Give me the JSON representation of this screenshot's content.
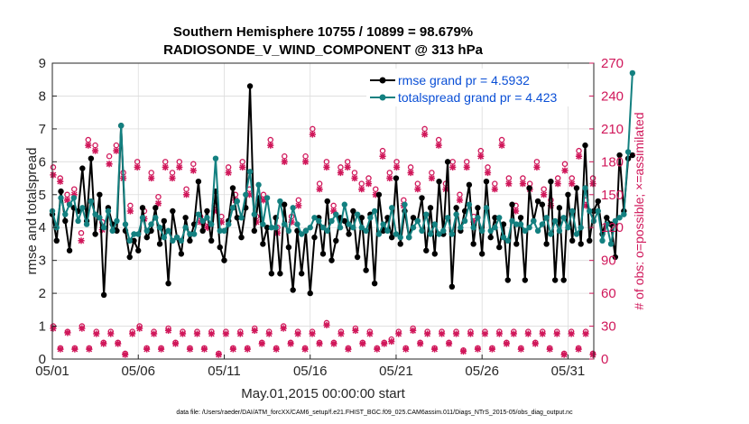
{
  "chart_data": {
    "type": "line",
    "title_line1": "Southern Hemisphere 10755 / 10899 = 98.679%",
    "title_line2": "RADIOSONDE_V_WIND_COMPONENT @ 313 hPa",
    "xlabel": "May.01,2015 00:00:00 start",
    "ylabel_left": "rmse and totalspread",
    "ylabel_right": "# of obs: o=possible; ×=assimilated",
    "footer": "data file: /Users/raeder/DAI/ATM_forcXX/CAM6_setup/f.e21.FHIST_BGC.f09_025.CAM6assim.011/Diags_NTrS_2015-05/obs_diag_output.nc",
    "xlim": [
      1,
      32.5
    ],
    "ylim_left": [
      0,
      9
    ],
    "ylim_right": [
      0,
      270
    ],
    "x_ticks": [
      1,
      6,
      11,
      16,
      21,
      26,
      31
    ],
    "x_tick_labels": [
      "05/01",
      "05/06",
      "05/11",
      "05/16",
      "05/21",
      "05/26",
      "05/31"
    ],
    "y_left_ticks": [
      "0",
      "1",
      "2",
      "3",
      "4",
      "5",
      "6",
      "7",
      "8",
      "9"
    ],
    "y_right_ticks": [
      "0",
      "30",
      "60",
      "90",
      "120",
      "150",
      "180",
      "210",
      "240",
      "270"
    ],
    "legend": [
      {
        "label": "rmse grand pr = 4.5932",
        "color": "#000000"
      },
      {
        "label": "totalspread grand pr = 4.423",
        "color": "#138080"
      }
    ],
    "colors": {
      "rmse": "#000000",
      "spread": "#138080",
      "obs": "#d0175a",
      "legend_text": "#0a4fd6"
    },
    "x_start": 1,
    "x_step": 0.25,
    "series": [
      {
        "name": "rmse",
        "values": [
          4.4,
          3.6,
          5.1,
          4.2,
          3.3,
          4.6,
          4.5,
          5.8,
          4.2,
          6.1,
          3.8,
          5.0,
          1.95,
          4.6,
          4.1,
          3.9,
          7.1,
          3.9,
          3.1,
          3.6,
          3.3,
          4.6,
          3.7,
          3.9,
          4.6,
          3.5,
          4.2,
          2.3,
          4.5,
          3.7,
          3.2,
          4.3,
          3.6,
          4.1,
          5.4,
          3.9,
          4.5,
          3.6,
          5.1,
          3.4,
          3.0,
          4.2,
          5.2,
          4.3,
          3.7,
          4.6,
          8.3,
          3.9,
          4.9,
          3.5,
          4.0,
          2.6,
          4.3,
          2.6,
          4.7,
          3.4,
          2.1,
          3.9,
          2.6,
          3.9,
          2.0,
          3.7,
          4.3,
          3.2,
          4.8,
          3.0,
          3.6,
          4.3,
          4.2,
          3.8,
          4.5,
          3.1,
          4.3,
          2.7,
          4.4,
          2.3,
          5.0,
          3.9,
          4.3,
          3.7,
          5.5,
          3.5,
          4.5,
          3.7,
          4.3,
          4.2,
          4.9,
          3.3,
          4.6,
          3.2,
          5.4,
          3.8,
          6.0,
          2.2,
          4.6,
          3.9,
          4.5,
          5.3,
          3.5,
          4.6,
          3.2,
          5.4,
          3.7,
          4.3,
          3.4,
          4.1,
          2.4,
          4.7,
          3.5,
          4.3,
          2.4,
          5.2,
          4.2,
          4.8,
          4.7,
          3.5,
          5.4,
          2.4,
          4.6,
          2.4,
          5.0,
          3.6,
          5.2,
          3.5,
          6.5,
          3.6,
          4.5,
          4.8,
          3.8,
          4.3,
          4.1,
          3.1,
          6.2,
          4.5,
          6.1,
          6.2
        ]
      },
      {
        "name": "totalspread",
        "values": [
          4.5,
          4.0,
          4.9,
          4.4,
          4.7,
          4.9,
          4.2,
          4.6,
          4.1,
          4.8,
          4.4,
          4.3,
          4.0,
          4.5,
          3.9,
          4.2,
          7.1,
          4.1,
          3.6,
          3.8,
          3.8,
          4.3,
          3.9,
          4.1,
          4.3,
          4.0,
          3.7,
          3.9,
          3.6,
          3.7,
          3.6,
          4.0,
          3.8,
          3.8,
          4.4,
          4.2,
          4.3,
          4.1,
          6.1,
          3.9,
          3.9,
          4.1,
          4.6,
          4.8,
          4.3,
          5.0,
          5.7,
          4.4,
          5.3,
          4.1,
          4.9,
          4.0,
          4.0,
          4.8,
          4.1,
          3.9,
          4.6,
          4.1,
          3.8,
          3.9,
          4.0,
          4.3,
          4.2,
          4.0,
          3.9,
          4.2,
          4.4,
          4.0,
          4.7,
          4.1,
          4.0,
          4.4,
          4.0,
          3.9,
          4.3,
          4.5,
          3.8,
          4.1,
          3.9,
          4.6,
          3.8,
          3.7,
          4.7,
          3.7,
          4.0,
          4.2,
          3.9,
          4.4,
          3.8,
          4.1,
          3.8,
          3.9,
          4.3,
          3.8,
          4.4,
          4.0,
          4.2,
          4.7,
          4.0,
          4.3,
          3.9,
          4.6,
          3.9,
          4.0,
          4.3,
          3.7,
          3.6,
          4.2,
          4.1,
          4.1,
          3.9,
          4.0,
          4.2,
          3.9,
          4.1,
          4.3,
          3.8,
          4.2,
          3.9,
          4.3,
          4.0,
          4.5,
          3.8,
          4.0,
          5.2,
          4.5,
          4.2,
          4.5,
          3.6,
          4.1,
          3.5,
          4.2,
          4.3,
          4.4,
          6.3,
          8.7
        ]
      }
    ],
    "obs_possible_high": [
      175,
      165,
      150,
      155,
      115,
      200,
      195,
      125,
      185,
      195,
      170,
      140,
      180,
      135,
      170,
      148,
      180,
      170,
      180,
      155,
      178,
      130,
      125,
      140,
      130,
      175,
      150,
      180,
      155,
      130,
      150,
      200,
      120,
      185,
      130,
      145,
      185,
      210,
      160,
      180,
      140,
      175,
      180,
      170,
      160,
      165,
      155,
      190,
      170,
      180,
      145,
      175,
      160,
      210,
      170,
      200,
      160,
      180,
      150,
      180,
      130,
      190,
      175,
      160,
      200,
      165,
      140,
      165,
      160,
      180,
      155,
      145,
      165,
      178,
      165,
      190,
      145,
      165
    ],
    "obs_possible_low": [
      30,
      10,
      25,
      10,
      30,
      10,
      25,
      15,
      25,
      15,
      5,
      25,
      30,
      10,
      25,
      10,
      28,
      15,
      25,
      10,
      25,
      10,
      25,
      5,
      25,
      10,
      25,
      10,
      28,
      15,
      25,
      10,
      30,
      15,
      25,
      10,
      25,
      15,
      33,
      15,
      25,
      10,
      28,
      15,
      25,
      10,
      15,
      18,
      25,
      10,
      28,
      15,
      25,
      10,
      25,
      15,
      25,
      8,
      25,
      10,
      25,
      10,
      25,
      15,
      25,
      10,
      25,
      15,
      25,
      10,
      25,
      5,
      25,
      10,
      25,
      5
    ],
    "obs_assimilated_high": [
      168,
      162,
      145,
      150,
      108,
      195,
      190,
      118,
      178,
      190,
      165,
      135,
      175,
      128,
      165,
      142,
      175,
      165,
      175,
      150,
      172,
      125,
      120,
      135,
      125,
      170,
      145,
      175,
      150,
      125,
      145,
      195,
      115,
      180,
      125,
      140,
      180,
      205,
      155,
      175,
      135,
      170,
      175,
      165,
      155,
      160,
      150,
      185,
      165,
      175,
      140,
      170,
      155,
      205,
      165,
      195,
      155,
      175,
      145,
      175,
      125,
      185,
      170,
      155,
      195,
      160,
      135,
      160,
      155,
      175,
      150,
      140,
      160,
      172,
      160,
      185,
      140,
      160
    ],
    "obs_assimilated_low": [
      28,
      9,
      24,
      9,
      28,
      9,
      23,
      14,
      23,
      14,
      4,
      23,
      28,
      9,
      23,
      9,
      26,
      14,
      23,
      9,
      23,
      9,
      23,
      4,
      23,
      9,
      23,
      9,
      26,
      14,
      23,
      9,
      28,
      14,
      23,
      9,
      23,
      14,
      31,
      14,
      23,
      9,
      26,
      14,
      23,
      9,
      14,
      16,
      23,
      9,
      26,
      14,
      23,
      9,
      23,
      14,
      23,
      7,
      23,
      9,
      23,
      9,
      23,
      14,
      23,
      9,
      23,
      14,
      23,
      9,
      23,
      4,
      23,
      9,
      23,
      4
    ]
  }
}
